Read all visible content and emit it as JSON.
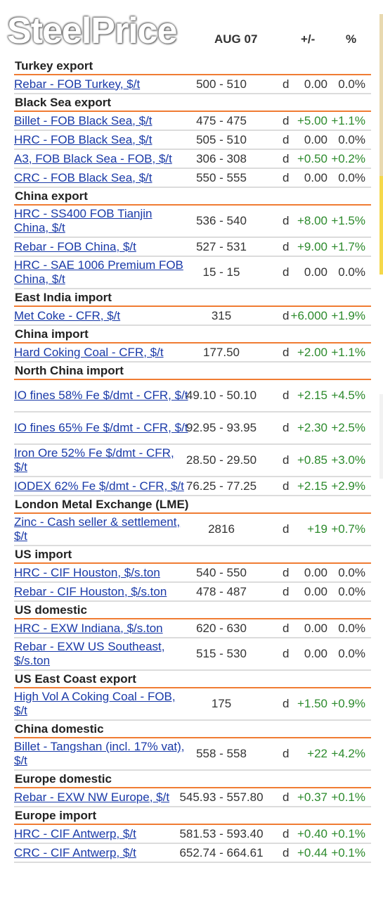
{
  "header": {
    "logo": "SteelPrice",
    "date_col": "AUG 07",
    "change_col": "+/-",
    "pct_col": "%"
  },
  "colors": {
    "section_rule": "#f07c33",
    "link": "#1a3aa8",
    "positive": "#2c8a2c"
  },
  "sections": [
    {
      "title": "Turkey export",
      "rows": [
        {
          "name": "Rebar - FOB Turkey, $/t",
          "range": "500 - 510",
          "d": "d",
          "change": "0.00",
          "pct": "0.0%",
          "trend": "zero"
        }
      ]
    },
    {
      "title": "Black Sea export",
      "rows": [
        {
          "name": "Billet - FOB Black Sea, $/t",
          "range": "475 - 475",
          "d": "d",
          "change": "+5.00",
          "pct": "+1.1%",
          "trend": "pos"
        },
        {
          "name": "HRC - FOB Black Sea, $/t",
          "range": "505 - 510",
          "d": "d",
          "change": "0.00",
          "pct": "0.0%",
          "trend": "zero"
        },
        {
          "name": "A3, FOB Black Sea - FOB, $/t",
          "range": "306 - 308",
          "d": "d",
          "change": "+0.50",
          "pct": "+0.2%",
          "trend": "pos"
        },
        {
          "name": "CRC - FOB Black Sea, $/t",
          "range": "550 - 555",
          "d": "d",
          "change": "0.00",
          "pct": "0.0%",
          "trend": "zero"
        }
      ]
    },
    {
      "title": "China export",
      "rows": [
        {
          "name": "HRC - SS400 FOB Tianjin China, $/t",
          "range": "536 - 540",
          "d": "d",
          "change": "+8.00",
          "pct": "+1.5%",
          "trend": "pos"
        },
        {
          "name": "Rebar - FOB China, $/t",
          "range": "527 - 531",
          "d": "d",
          "change": "+9.00",
          "pct": "+1.7%",
          "trend": "pos"
        },
        {
          "name": "HRC - SAE 1006 Premium FOB China, $/t",
          "range": "15 - 15",
          "d": "d",
          "change": "0.00",
          "pct": "0.0%",
          "trend": "zero"
        }
      ]
    },
    {
      "title": "East India import",
      "rows": [
        {
          "name": "Met Coke - CFR, $/t",
          "range": "315",
          "d": "d",
          "change": "+6.000",
          "pct": "+1.9%",
          "trend": "pos"
        }
      ]
    },
    {
      "title": "China import",
      "rows": [
        {
          "name": "Hard Coking Coal - CFR, $/t",
          "range": "177.50",
          "d": "d",
          "change": "+2.00",
          "pct": "+1.1%",
          "trend": "pos"
        }
      ]
    },
    {
      "title": "North China import",
      "rows": [
        {
          "name": "IO fines 58% Fe $/dmt - CFR, $/t",
          "range": "49.10 - 50.10",
          "d": "d",
          "change": "+2.15",
          "pct": "+4.5%",
          "trend": "pos"
        },
        {
          "name": "IO fines 65% Fe $/dmt - CFR, $/t",
          "range": "92.95 - 93.95",
          "d": "d",
          "change": "+2.30",
          "pct": "+2.5%",
          "trend": "pos"
        },
        {
          "name": "Iron Ore 52% Fe $/dmt - CFR, $/t",
          "range": "28.50 - 29.50",
          "d": "d",
          "change": "+0.85",
          "pct": "+3.0%",
          "trend": "pos"
        },
        {
          "name": "IODEX 62% Fe $/dmt - CFR, $/t",
          "range": "76.25 - 77.25",
          "d": "d",
          "change": "+2.15",
          "pct": "+2.9%",
          "trend": "pos"
        }
      ]
    },
    {
      "title": "London Metal Exchange (LME)",
      "rows": [
        {
          "name": "Zinc - Cash seller & settlement, $/t",
          "range": "2816",
          "d": "d",
          "change": "+19",
          "pct": "+0.7%",
          "trend": "pos"
        }
      ]
    },
    {
      "title": "US import",
      "rows": [
        {
          "name": "HRC - CIF Houston, $/s.ton",
          "range": "540 - 550",
          "d": "d",
          "change": "0.00",
          "pct": "0.0%",
          "trend": "zero"
        },
        {
          "name": "Rebar - CIF Houston, $/s.ton",
          "range": "478 - 487",
          "d": "d",
          "change": "0.00",
          "pct": "0.0%",
          "trend": "zero"
        }
      ]
    },
    {
      "title": "US domestic",
      "rows": [
        {
          "name": "HRC - EXW Indiana, $/s.ton",
          "range": "620 - 630",
          "d": "d",
          "change": "0.00",
          "pct": "0.0%",
          "trend": "zero"
        },
        {
          "name": "Rebar - EXW US Southeast, $/s.ton",
          "range": "515 - 530",
          "d": "d",
          "change": "0.00",
          "pct": "0.0%",
          "trend": "zero"
        }
      ]
    },
    {
      "title": "US East Coast export",
      "rows": [
        {
          "name": "High Vol A Coking Coal - FOB, $/t",
          "range": "175",
          "d": "d",
          "change": "+1.50",
          "pct": "+0.9%",
          "trend": "pos"
        }
      ]
    },
    {
      "title": "China domestic",
      "rows": [
        {
          "name": "Billet - Tangshan (incl. 17% vat), $/t",
          "range": "558 - 558",
          "d": "d",
          "change": "+22",
          "pct": "+4.2%",
          "trend": "pos"
        }
      ]
    },
    {
      "title": "Europe domestic",
      "rows": [
        {
          "name": "Rebar - EXW NW Europe, $/t",
          "range": "545.93 - 557.80",
          "d": "d",
          "change": "+0.37",
          "pct": "+0.1%",
          "trend": "pos"
        }
      ]
    },
    {
      "title": "Europe import",
      "rows": [
        {
          "name": "HRC - CIF Antwerp, $/t",
          "range": "581.53 - 593.40",
          "d": "d",
          "change": "+0.40",
          "pct": "+0.1%",
          "trend": "pos"
        },
        {
          "name": "CRC - CIF Antwerp, $/t",
          "range": "652.74 - 664.61",
          "d": "d",
          "change": "+0.44",
          "pct": "+0.1%",
          "trend": "pos"
        }
      ]
    }
  ]
}
